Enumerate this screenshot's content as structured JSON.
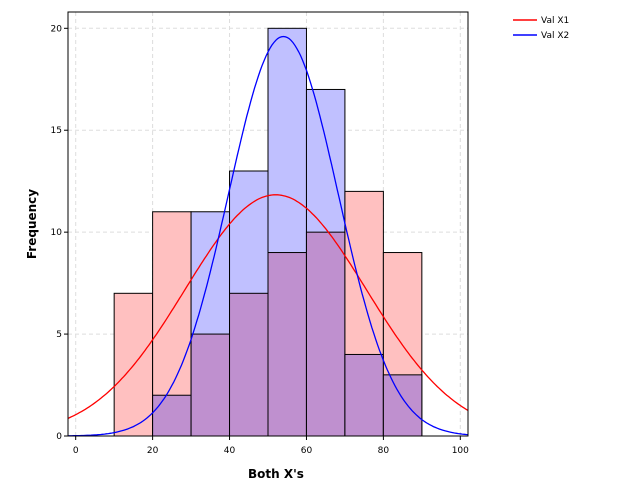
{
  "chart_data": {
    "type": "bar",
    "title": "",
    "xlabel": "Both X's",
    "ylabel": "Frequency",
    "xlim": [
      -2,
      102
    ],
    "ylim": [
      0,
      20.8
    ],
    "xticks": [
      0,
      20,
      40,
      60,
      80,
      100
    ],
    "yticks": [
      0,
      5,
      10,
      15,
      20
    ],
    "bin_edges": [
      10,
      20,
      30,
      40,
      50,
      60,
      70,
      80,
      90
    ],
    "grid": true,
    "legend_position": "top-right, outside",
    "series": [
      {
        "name": "Val X1",
        "values": [
          7,
          11,
          5,
          7,
          9,
          10,
          12,
          9
        ],
        "curve": {
          "type": "normal",
          "mean": 52,
          "sd": 23.6,
          "n": 70
        },
        "line_color": "#ff0000",
        "fill": "#ffc0c0"
      },
      {
        "name": "Val X2",
        "values": [
          0,
          2,
          11,
          13,
          20,
          17,
          4,
          3
        ],
        "curve": {
          "type": "normal",
          "mean": 54,
          "sd": 14.25,
          "n": 70
        },
        "line_color": "#0000ff",
        "fill": "#c0c0ff"
      }
    ],
    "overlap_fill": "#bf90cf"
  }
}
